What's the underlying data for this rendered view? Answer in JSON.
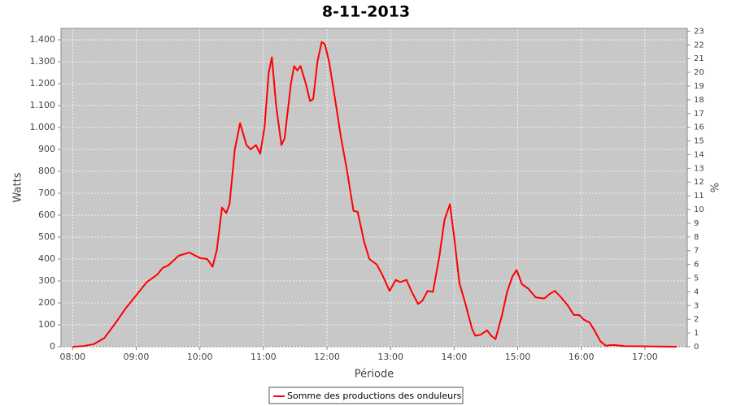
{
  "chart_data": {
    "type": "line",
    "title": "8-11-2013",
    "x_label": "Période",
    "y_label": "Watts",
    "y2_label": "%",
    "x": [
      "08:00",
      "08:10",
      "08:20",
      "08:30",
      "08:40",
      "08:50",
      "09:00",
      "09:10",
      "09:20",
      "09:25",
      "09:30",
      "09:40",
      "09:50",
      "10:00",
      "10:07",
      "10:12",
      "10:16",
      "10:21",
      "10:25",
      "10:28",
      "10:33",
      "10:38",
      "10:44",
      "10:48",
      "10:53",
      "10:57",
      "11:01",
      "11:05",
      "11:08",
      "11:12",
      "11:17",
      "11:20",
      "11:26",
      "11:29",
      "11:32",
      "11:35",
      "11:40",
      "11:44",
      "11:47",
      "11:51",
      "11:55",
      "11:58",
      "12:02",
      "12:07",
      "12:13",
      "12:19",
      "12:25",
      "12:29",
      "12:35",
      "12:40",
      "12:47",
      "12:53",
      "12:59",
      "13:05",
      "13:09",
      "13:15",
      "13:20",
      "13:26",
      "13:30",
      "13:35",
      "13:40",
      "13:46",
      "13:51",
      "13:56",
      "14:00",
      "14:05",
      "14:11",
      "14:17",
      "14:20",
      "14:25",
      "14:31",
      "14:35",
      "14:39",
      "14:45",
      "14:50",
      "14:55",
      "14:59",
      "15:04",
      "15:10",
      "15:17",
      "15:25",
      "15:30",
      "15:35",
      "15:40",
      "15:47",
      "15:53",
      "15:58",
      "16:02",
      "16:08",
      "16:13",
      "16:18",
      "16:23",
      "16:30",
      "16:40",
      "17:00",
      "17:30"
    ],
    "series": [
      {
        "name": "Somme des productions des onduleurs",
        "color": "#ff0000",
        "values": [
          0,
          3,
          12,
          40,
          105,
          175,
          235,
          295,
          330,
          360,
          370,
          415,
          430,
          405,
          400,
          365,
          440,
          635,
          610,
          650,
          900,
          1020,
          920,
          900,
          920,
          880,
          1000,
          1250,
          1320,
          1100,
          920,
          950,
          1200,
          1280,
          1260,
          1280,
          1200,
          1120,
          1130,
          1300,
          1390,
          1380,
          1300,
          1150,
          960,
          800,
          620,
          615,
          480,
          400,
          375,
          320,
          255,
          305,
          295,
          305,
          250,
          195,
          210,
          255,
          250,
          410,
          580,
          650,
          500,
          290,
          190,
          80,
          50,
          55,
          75,
          50,
          35,
          140,
          250,
          320,
          350,
          285,
          265,
          225,
          220,
          240,
          255,
          230,
          190,
          145,
          145,
          125,
          110,
          70,
          25,
          5,
          8,
          3,
          2,
          0
        ]
      }
    ],
    "xlim": [
      "07:49",
      "17:40"
    ],
    "xticks": [
      "08:00",
      "09:00",
      "10:00",
      "11:00",
      "12:00",
      "13:00",
      "14:00",
      "15:00",
      "16:00",
      "17:00"
    ],
    "ylim": [
      0,
      1452
    ],
    "yticks": [
      0,
      100,
      200,
      300,
      400,
      500,
      600,
      700,
      800,
      900,
      {
        "value": 1000,
        "label": "1.000"
      },
      {
        "value": 1100,
        "label": "1.100"
      },
      {
        "value": 1200,
        "label": "1.200"
      },
      {
        "value": 1300,
        "label": "1.300"
      },
      {
        "value": 1400,
        "label": "1.400"
      }
    ],
    "y2lim": [
      0,
      23.2
    ],
    "y2ticks": [
      0,
      1,
      2,
      3,
      4,
      5,
      6,
      7,
      8,
      9,
      10,
      11,
      12,
      13,
      14,
      15,
      16,
      17,
      18,
      19,
      20,
      21,
      22,
      23
    ],
    "grid": true,
    "legend": "bottom"
  }
}
